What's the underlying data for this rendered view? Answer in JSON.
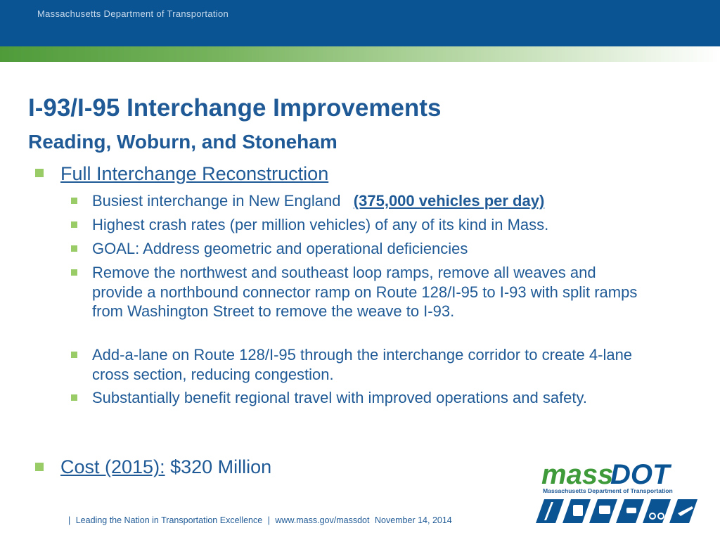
{
  "header": {
    "agency": "Massachusetts Department of Transportation"
  },
  "slide": {
    "title": "I-93/I-95 Interchange Improvements",
    "subtitle": "Reading, Woburn, and Stoneham",
    "section1": {
      "heading": "Full Interchange Reconstruction",
      "items": {
        "i0_text": "Busiest interchange in New England",
        "i0_emph": "(375,000 vehicles per day)",
        "i1": "Highest crash rates (per million vehicles) of any of its kind in Mass.",
        "i2": "GOAL: Address geometric and operational deficiencies",
        "i3": "Remove the northwest and southeast loop ramps, remove all weaves and provide a northbound connector ramp on Route 128/I-95 to I-93 with split ramps from Washington Street to remove the weave to I-93.",
        "i4": "Add-a-lane on Route 128/I-95 through the interchange corridor to create 4-lane cross section, reducing congestion.",
        "i5": "Substantially benefit regional travel with improved operations and safety."
      }
    },
    "cost": {
      "label": "Cost (2015):",
      "value": "$320 Million"
    }
  },
  "logo": {
    "word1": "mass",
    "word2": "DOT",
    "tagline": "Massachusetts Department of Transportation"
  },
  "footer": {
    "sep1": "|",
    "tagline": "Leading the Nation in Transportation Excellence",
    "sep2": "|",
    "url": "www.mass.gov/massdot",
    "date": "November 14, 2014"
  },
  "colors": {
    "primary_blue": "#1f5a96",
    "header_blue": "#0a5494",
    "accent_green": "#99cc66"
  }
}
